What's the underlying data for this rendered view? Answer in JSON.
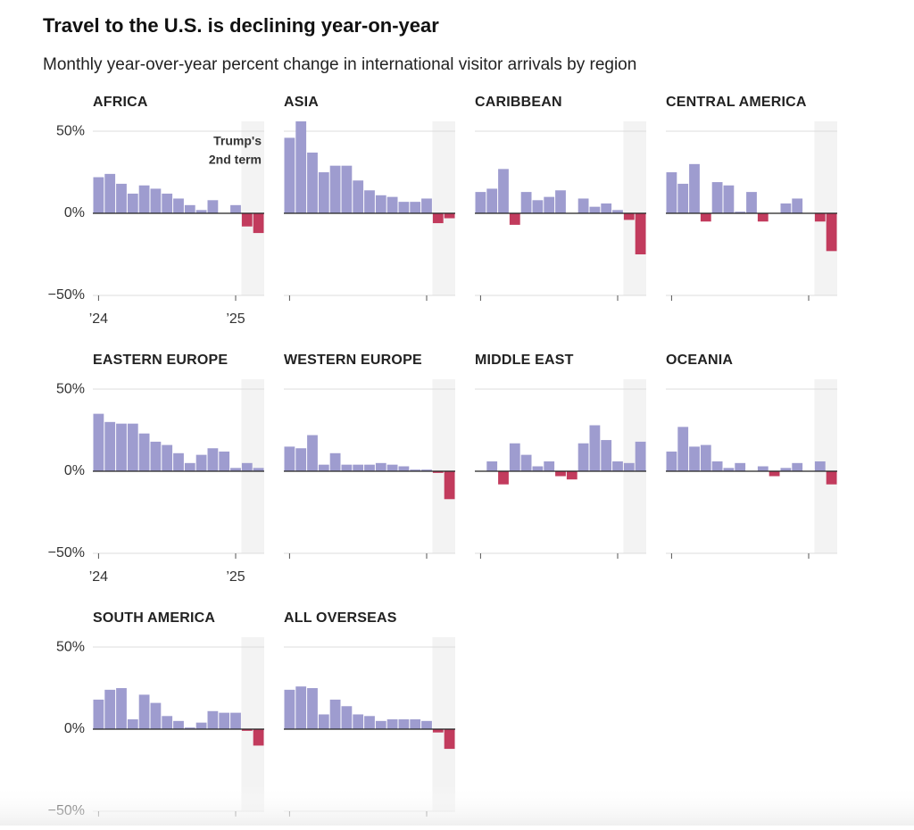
{
  "title": "Travel to the U.S. is declining year-on-year",
  "subtitle": "Monthly year-over-year percent change in international visitor arrivals by region",
  "chart_data": [
    {
      "type": "bar",
      "title": "AFRICA",
      "categories": [
        "’24",
        null,
        null,
        null,
        null,
        null,
        null,
        null,
        null,
        null,
        null,
        null,
        "’25",
        null,
        null
      ],
      "xticks": [
        0,
        12
      ],
      "values": [
        22,
        24,
        18,
        12,
        17,
        15,
        12,
        9,
        5,
        2,
        8,
        0,
        5,
        -8,
        -12
      ],
      "ylim": [
        -50,
        56
      ],
      "yticks": [
        {
          "value": -50,
          "label": "−50%"
        },
        {
          "value": 0,
          "label": "0%"
        },
        {
          "value": 50,
          "label": "50%"
        }
      ],
      "color": "#9e9ccf",
      "negative_color": "#c23b5d",
      "highlight_from": 13,
      "highlight_color": "#f3f3f3",
      "annotation": [
        "Trump's",
        "2nd term"
      ]
    },
    {
      "type": "bar",
      "title": "ASIA",
      "categories": [
        null,
        null,
        null,
        null,
        null,
        null,
        null,
        null,
        null,
        null,
        null,
        null,
        null,
        null,
        null
      ],
      "xticks": [
        0,
        12
      ],
      "values": [
        46,
        56,
        37,
        25,
        29,
        29,
        20,
        14,
        11,
        10,
        7,
        7,
        9,
        -6,
        -3
      ],
      "ylim": [
        -50,
        56
      ],
      "yticks": [
        -50,
        0,
        50
      ],
      "color": "#9e9ccf",
      "negative_color": "#c23b5d",
      "highlight_from": 13,
      "highlight_color": "#f3f3f3"
    },
    {
      "type": "bar",
      "title": "CARIBBEAN",
      "categories": [
        null,
        null,
        null,
        null,
        null,
        null,
        null,
        null,
        null,
        null,
        null,
        null,
        null,
        null,
        null
      ],
      "xticks": [
        0,
        12
      ],
      "values": [
        13,
        15,
        27,
        -7,
        13,
        8,
        10,
        14,
        0,
        9,
        4,
        6,
        2,
        -4,
        -25
      ],
      "ylim": [
        -50,
        56
      ],
      "yticks": [
        -50,
        0,
        50
      ],
      "color": "#9e9ccf",
      "negative_color": "#c23b5d",
      "highlight_from": 13,
      "highlight_color": "#f3f3f3"
    },
    {
      "type": "bar",
      "title": "CENTRAL AMERICA",
      "categories": [
        null,
        null,
        null,
        null,
        null,
        null,
        null,
        null,
        null,
        null,
        null,
        null,
        null,
        null,
        null
      ],
      "xticks": [
        0,
        12
      ],
      "values": [
        25,
        18,
        30,
        -5,
        19,
        17,
        1,
        13,
        -5,
        0,
        6,
        9,
        0,
        -5,
        -23
      ],
      "ylim": [
        -50,
        56
      ],
      "yticks": [
        -50,
        0,
        50
      ],
      "color": "#9e9ccf",
      "negative_color": "#c23b5d",
      "highlight_from": 13,
      "highlight_color": "#f3f3f3"
    },
    {
      "type": "bar",
      "title": "EASTERN EUROPE",
      "categories": [
        "’24",
        null,
        null,
        null,
        null,
        null,
        null,
        null,
        null,
        null,
        null,
        null,
        "’25",
        null,
        null
      ],
      "xticks": [
        0,
        12
      ],
      "values": [
        35,
        30,
        29,
        29,
        23,
        18,
        16,
        11,
        5,
        10,
        14,
        12,
        2,
        5,
        2
      ],
      "ylim": [
        -50,
        56
      ],
      "yticks": [
        {
          "value": -50,
          "label": "−50%"
        },
        {
          "value": 0,
          "label": "0%"
        },
        {
          "value": 50,
          "label": "50%"
        }
      ],
      "color": "#9e9ccf",
      "negative_color": "#c23b5d",
      "highlight_from": 13,
      "highlight_color": "#f3f3f3"
    },
    {
      "type": "bar",
      "title": "WESTERN EUROPE",
      "categories": [
        null,
        null,
        null,
        null,
        null,
        null,
        null,
        null,
        null,
        null,
        null,
        null,
        null,
        null,
        null
      ],
      "xticks": [
        0,
        12
      ],
      "values": [
        15,
        14,
        22,
        4,
        11,
        4,
        4,
        4,
        5,
        4,
        3,
        1,
        1,
        -1,
        -17
      ],
      "ylim": [
        -50,
        56
      ],
      "yticks": [
        -50,
        0,
        50
      ],
      "color": "#9e9ccf",
      "negative_color": "#c23b5d",
      "highlight_from": 13,
      "highlight_color": "#f3f3f3"
    },
    {
      "type": "bar",
      "title": "MIDDLE EAST",
      "categories": [
        null,
        null,
        null,
        null,
        null,
        null,
        null,
        null,
        null,
        null,
        null,
        null,
        null,
        null,
        null
      ],
      "xticks": [
        0,
        12
      ],
      "values": [
        0,
        6,
        -8,
        17,
        10,
        3,
        6,
        -3,
        -5,
        17,
        28,
        19,
        6,
        5,
        18
      ],
      "ylim": [
        -50,
        56
      ],
      "yticks": [
        -50,
        0,
        50
      ],
      "color": "#9e9ccf",
      "negative_color": "#c23b5d",
      "highlight_from": 13,
      "highlight_color": "#f3f3f3"
    },
    {
      "type": "bar",
      "title": "OCEANIA",
      "categories": [
        null,
        null,
        null,
        null,
        null,
        null,
        null,
        null,
        null,
        null,
        null,
        null,
        null,
        null,
        null
      ],
      "xticks": [
        0,
        12
      ],
      "values": [
        12,
        27,
        15,
        16,
        6,
        2,
        5,
        0,
        3,
        -3,
        2,
        5,
        0,
        6,
        -8
      ],
      "ylim": [
        -50,
        56
      ],
      "yticks": [
        -50,
        0,
        50
      ],
      "color": "#9e9ccf",
      "negative_color": "#c23b5d",
      "highlight_from": 13,
      "highlight_color": "#f3f3f3"
    },
    {
      "type": "bar",
      "title": "SOUTH AMERICA",
      "categories": [
        null,
        null,
        null,
        null,
        null,
        null,
        null,
        null,
        null,
        null,
        null,
        null,
        null,
        null,
        null
      ],
      "xticks": [
        0,
        12
      ],
      "values": [
        18,
        24,
        25,
        6,
        21,
        16,
        8,
        5,
        1,
        4,
        11,
        10,
        10,
        -1,
        -10
      ],
      "ylim": [
        -50,
        56
      ],
      "yticks": [
        {
          "value": -50,
          "label": "−50%"
        },
        {
          "value": 0,
          "label": "0%"
        },
        {
          "value": 50,
          "label": "50%"
        }
      ],
      "color": "#9e9ccf",
      "negative_color": "#c23b5d",
      "highlight_from": 13,
      "highlight_color": "#f3f3f3"
    },
    {
      "type": "bar",
      "title": "ALL OVERSEAS",
      "categories": [
        null,
        null,
        null,
        null,
        null,
        null,
        null,
        null,
        null,
        null,
        null,
        null,
        null,
        null,
        null
      ],
      "xticks": [
        0,
        12
      ],
      "values": [
        24,
        26,
        25,
        9,
        18,
        14,
        9,
        8,
        5,
        6,
        6,
        6,
        5,
        -2,
        -12
      ],
      "ylim": [
        -50,
        56
      ],
      "yticks": [
        -50,
        0,
        50
      ],
      "color": "#9e9ccf",
      "negative_color": "#c23b5d",
      "highlight_from": 13,
      "highlight_color": "#f3f3f3"
    }
  ]
}
